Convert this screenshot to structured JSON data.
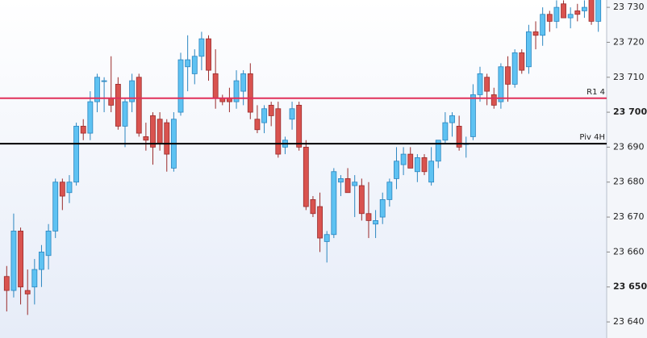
{
  "chart_data": {
    "type": "candlestick",
    "ylim": [
      23635.4,
      23732.1
    ],
    "yticks": [
      {
        "value": 23640,
        "label": "23 640"
      },
      {
        "value": 23650,
        "label": "23 650",
        "bold": true
      },
      {
        "value": 23660,
        "label": "23 660"
      },
      {
        "value": 23670,
        "label": "23 670"
      },
      {
        "value": 23680,
        "label": "23 680"
      },
      {
        "value": 23690,
        "label": "23 690"
      },
      {
        "value": 23700,
        "label": "23 700",
        "bold": true
      },
      {
        "value": 23710,
        "label": "23 710"
      },
      {
        "value": 23720,
        "label": "23 720"
      },
      {
        "value": 23730,
        "label": "23 730"
      }
    ],
    "up_color": "#5ec2f2",
    "down_color": "#d9534f",
    "candles": [
      [
        23653,
        23656,
        23643,
        23649
      ],
      [
        23649,
        23671,
        23647,
        23666
      ],
      [
        23666,
        23667,
        23645,
        23650
      ],
      [
        23649,
        23655,
        23642,
        23648
      ],
      [
        23650,
        23658,
        23645,
        23655
      ],
      [
        23655,
        23662,
        23650,
        23660
      ],
      [
        23659,
        23668,
        23655,
        23666
      ],
      [
        23666,
        23681,
        23664,
        23680
      ],
      [
        23680,
        23681,
        23672,
        23676
      ],
      [
        23677,
        23682,
        23674,
        23680
      ],
      [
        23680,
        23697,
        23679,
        23696
      ],
      [
        23696,
        23698,
        23692,
        23694
      ],
      [
        23694,
        23706,
        23692,
        23703
      ],
      [
        23703,
        23711,
        23700,
        23710
      ],
      [
        23709,
        23710,
        23700,
        23709
      ],
      [
        23704,
        23716,
        23700,
        23702
      ],
      [
        23708,
        23710,
        23695,
        23696
      ],
      [
        23696,
        23704,
        23690,
        23703
      ],
      [
        23703,
        23711,
        23700,
        23709
      ],
      [
        23710,
        23711,
        23693,
        23694
      ],
      [
        23693,
        23697,
        23689,
        23692
      ],
      [
        23699,
        23700,
        23685,
        23690
      ],
      [
        23698,
        23700,
        23689,
        23691
      ],
      [
        23697,
        23698,
        23683,
        23688
      ],
      [
        23684,
        23700,
        23683,
        23698
      ],
      [
        23700,
        23717,
        23699,
        23715
      ],
      [
        23713,
        23722,
        23706,
        23715
      ],
      [
        23711,
        23718,
        23708,
        23716
      ],
      [
        23716,
        23723,
        23712,
        23721
      ],
      [
        23721,
        23722,
        23709,
        23712
      ],
      [
        23711,
        23718,
        23701,
        23704
      ],
      [
        23704,
        23705,
        23702,
        23703
      ],
      [
        23704,
        23707,
        23700,
        23703
      ],
      [
        23703,
        23712,
        23701,
        23709
      ],
      [
        23706,
        23712,
        23702,
        23711
      ],
      [
        23711,
        23714,
        23698,
        23700
      ],
      [
        23698,
        23702,
        23694,
        23695
      ],
      [
        23697,
        23702,
        23694,
        23701
      ],
      [
        23702,
        23703,
        23696,
        23699
      ],
      [
        23701,
        23703,
        23687,
        23688
      ],
      [
        23690,
        23693,
        23688,
        23692
      ],
      [
        23698,
        23703,
        23695,
        23701
      ],
      [
        23702,
        23703,
        23689,
        23690
      ],
      [
        23690,
        23692,
        23672,
        23673
      ],
      [
        23675,
        23676,
        23670,
        23671
      ],
      [
        23673,
        23677,
        23660,
        23664
      ],
      [
        23663,
        23666,
        23657,
        23665
      ],
      [
        23665,
        23684,
        23664,
        23683
      ],
      [
        23680,
        23682,
        23676,
        23681
      ],
      [
        23681,
        23684,
        23677,
        23677
      ],
      [
        23679,
        23682,
        23670,
        23680
      ],
      [
        23679,
        23681,
        23669,
        23671
      ],
      [
        23671,
        23680,
        23664,
        23669
      ],
      [
        23668,
        23672,
        23664,
        23669
      ],
      [
        23670,
        23677,
        23668,
        23675
      ],
      [
        23675,
        23681,
        23673,
        23680
      ],
      [
        23681,
        23690,
        23678,
        23686
      ],
      [
        23685,
        23690,
        23682,
        23688
      ],
      [
        23688,
        23690,
        23684,
        23684
      ],
      [
        23683,
        23688,
        23680,
        23687
      ],
      [
        23687,
        23688,
        23682,
        23683
      ],
      [
        23680,
        23690,
        23679,
        23686
      ],
      [
        23686,
        23692,
        23684,
        23692
      ],
      [
        23692,
        23700,
        23691,
        23697
      ],
      [
        23697,
        23700,
        23693,
        23699
      ],
      [
        23696,
        23699,
        23689,
        23690
      ],
      [
        23691,
        23693,
        23687,
        23691
      ],
      [
        23693,
        23708,
        23692,
        23705
      ],
      [
        23705,
        23713,
        23703,
        23711
      ],
      [
        23710,
        23711,
        23702,
        23706
      ],
      [
        23705,
        23707,
        23701,
        23702
      ],
      [
        23703,
        23714,
        23701,
        23713
      ],
      [
        23713,
        23716,
        23703,
        23708
      ],
      [
        23708,
        23718,
        23707,
        23717
      ],
      [
        23717,
        23718,
        23711,
        23712
      ],
      [
        23713,
        23725,
        23711,
        23723
      ],
      [
        23723,
        23726,
        23718,
        23722
      ],
      [
        23722,
        23730,
        23719,
        23728
      ],
      [
        23728,
        23729,
        23723,
        23726
      ],
      [
        23726,
        23732,
        23724,
        23730
      ],
      [
        23731,
        23732,
        23727,
        23727
      ],
      [
        23727,
        23730,
        23724,
        23728
      ],
      [
        23729,
        23731,
        23726,
        23728
      ],
      [
        23729,
        23732,
        23727,
        23730
      ],
      [
        23733,
        23733,
        23725,
        23726
      ],
      [
        23726,
        23734,
        23723,
        23733
      ]
    ],
    "levels": [
      {
        "label": "R1 4",
        "value": 23704,
        "color": "#e0305a"
      },
      {
        "label": "Piv 4H",
        "value": 23691,
        "color": "#000000"
      }
    ]
  }
}
